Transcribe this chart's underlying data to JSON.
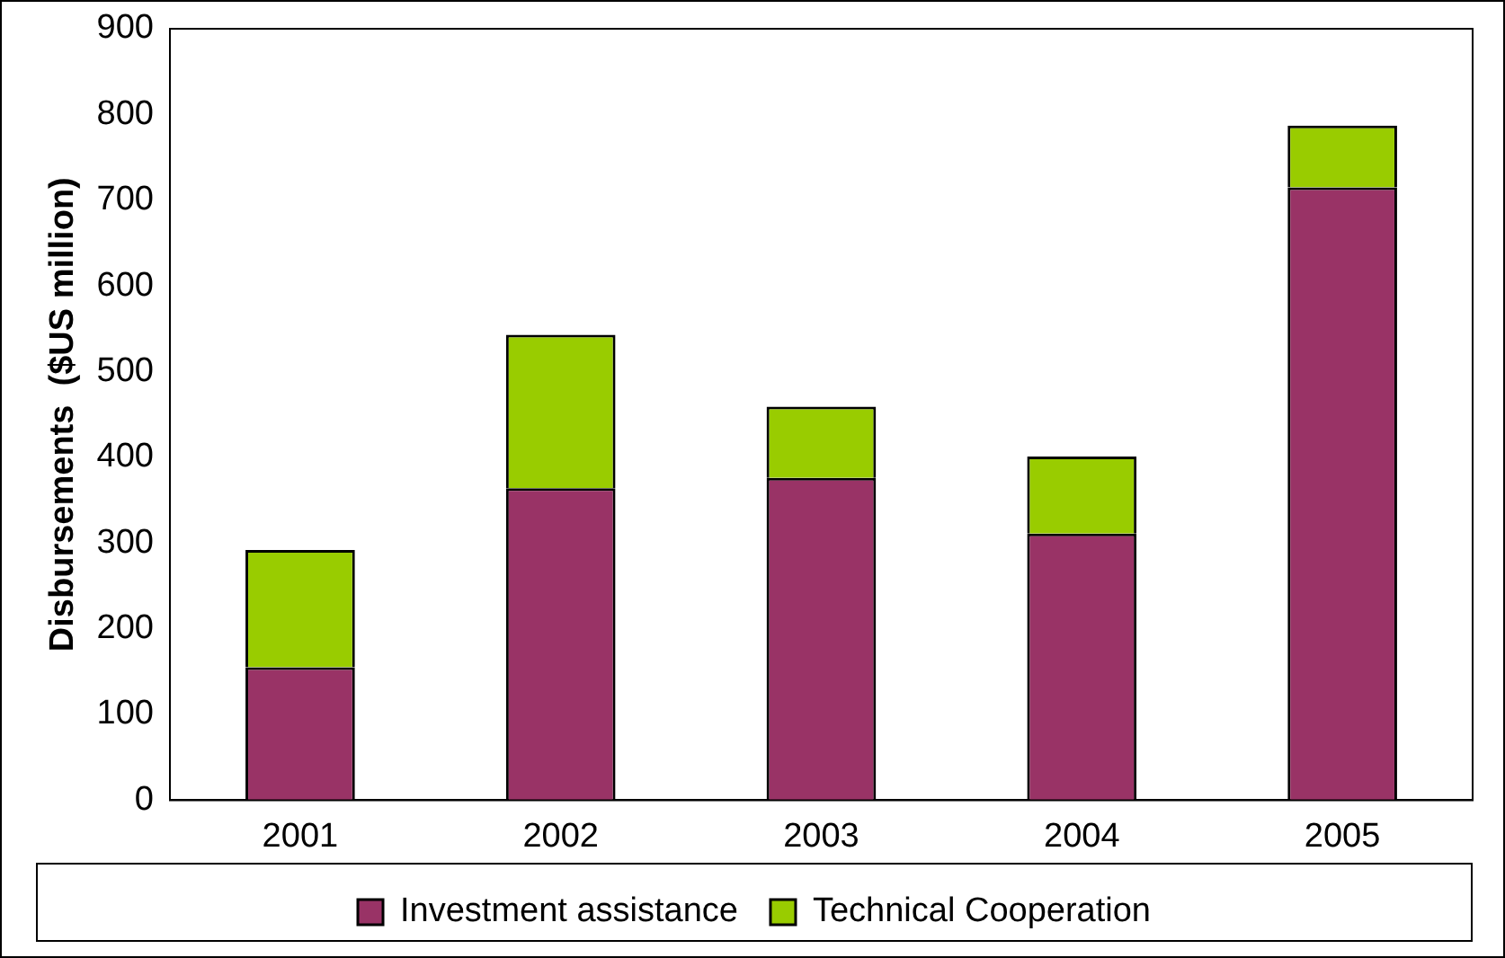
{
  "chart_data": {
    "type": "bar",
    "stacked": true,
    "ylabel": "Disbursements  ($US million)",
    "categories": [
      "2001",
      "2002",
      "2003",
      "2004",
      "2005"
    ],
    "series": [
      {
        "name": "Investment assistance",
        "color": "#993366",
        "values": [
          155,
          364,
          376,
          311,
          715
        ]
      },
      {
        "name": "Technical Cooperation",
        "color": "#99cc00",
        "values": [
          137,
          179,
          83,
          90,
          72
        ]
      }
    ],
    "ylim": [
      0,
      900
    ],
    "yticks": [
      0,
      100,
      200,
      300,
      400,
      500,
      600,
      700,
      800,
      900
    ],
    "grid": false,
    "legend": "bottom"
  }
}
